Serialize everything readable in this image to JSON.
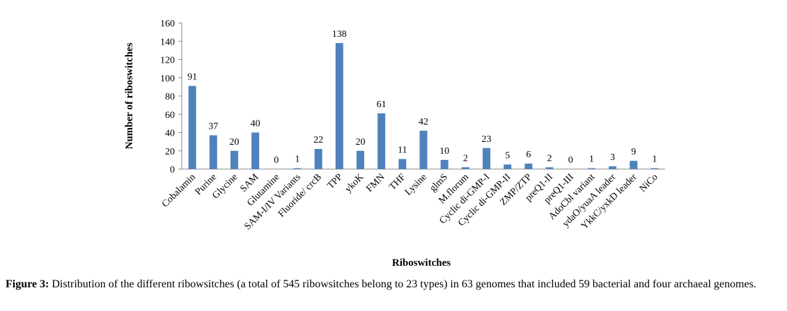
{
  "chart_data": {
    "type": "bar",
    "x_label": "Riboswitches",
    "y_label": "Number of riboswitches",
    "categories": [
      "Cobalamin",
      "Purine",
      "Glycine",
      "SAM",
      "Glutamine",
      "SAM-I/IV Variants",
      "Fluoride/ crcB",
      "TPP",
      "ykoK",
      "FMN",
      "THF",
      "Lysine",
      "glmS",
      "M.florum",
      "Cyclic di-GMP-I",
      "Cyclic di-GMP-II",
      "ZMP/ZTP",
      "preQ1-II",
      "preQ1-III",
      "AdoCbl variant",
      "ydaO/yuaA leader",
      "YkkC/yxkD leader",
      "NiCo"
    ],
    "values": [
      91,
      37,
      20,
      40,
      0,
      1,
      22,
      138,
      20,
      61,
      11,
      42,
      10,
      2,
      23,
      5,
      6,
      2,
      0,
      1,
      3,
      9,
      1
    ],
    "color": "#4f81bd",
    "ylim": [
      0,
      160
    ],
    "yticks": [
      0,
      20,
      40,
      60,
      80,
      100,
      120,
      140,
      160
    ],
    "grid": false
  },
  "caption": {
    "label": "Figure 3:",
    "text": "Distribution of the different ribowsitches (a total of 545 ribowsitches belong to 23 types) in 63 genomes that included 59 bacterial and four archaeal genomes."
  }
}
